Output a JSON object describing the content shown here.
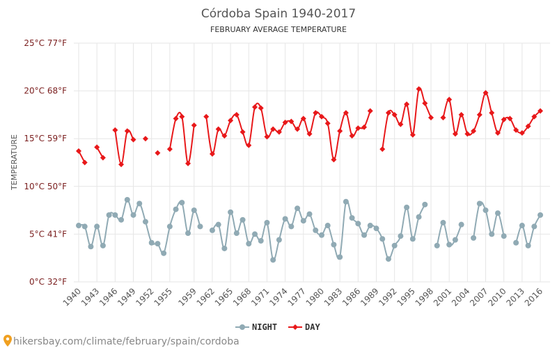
{
  "chart_data": {
    "type": "line",
    "title": "Córdoba Spain 1940-2017",
    "subtitle": "FEBRUARY AVERAGE TEMPERATURE",
    "ylabel": "TEMPERATURE",
    "ylim": [
      0,
      25
    ],
    "yticks": [
      {
        "value": 0,
        "label": "0°C 32°F"
      },
      {
        "value": 5,
        "label": "5°C 41°F"
      },
      {
        "value": 10,
        "label": "10°C 50°F"
      },
      {
        "value": 15,
        "label": "15°C 59°F"
      },
      {
        "value": 20,
        "label": "20°C 68°F"
      },
      {
        "value": 25,
        "label": "25°C 77°F"
      }
    ],
    "xticks": [
      1940,
      1943,
      1946,
      1949,
      1952,
      1955,
      1959,
      1962,
      1965,
      1968,
      1971,
      1974,
      1977,
      1980,
      1983,
      1986,
      1989,
      1992,
      1995,
      1998,
      2001,
      2004,
      2007,
      2010,
      2013,
      2016
    ],
    "x": [
      1940,
      1941,
      1942,
      1943,
      1944,
      1945,
      1946,
      1947,
      1948,
      1949,
      1950,
      1951,
      1952,
      1953,
      1954,
      1955,
      1956,
      1957,
      1958,
      1959,
      1960,
      1961,
      1962,
      1963,
      1964,
      1965,
      1966,
      1967,
      1968,
      1969,
      1970,
      1971,
      1972,
      1973,
      1974,
      1975,
      1976,
      1977,
      1978,
      1979,
      1980,
      1981,
      1982,
      1983,
      1984,
      1985,
      1986,
      1987,
      1988,
      1989,
      1990,
      1991,
      1992,
      1993,
      1994,
      1995,
      1996,
      1997,
      1998,
      1999,
      2000,
      2001,
      2002,
      2003,
      2004,
      2005,
      2006,
      2007,
      2008,
      2009,
      2010,
      2011,
      2012,
      2013,
      2014,
      2015,
      2016,
      2017
    ],
    "series": [
      {
        "name": "NIGHT",
        "color": "#90aab4",
        "values": [
          5.9,
          5.8,
          3.7,
          5.8,
          3.8,
          7.0,
          7.0,
          6.5,
          8.6,
          7.0,
          8.2,
          6.3,
          4.1,
          4.0,
          3.0,
          5.8,
          7.6,
          8.3,
          5.1,
          7.5,
          5.8,
          null,
          5.4,
          6.0,
          3.5,
          7.3,
          5.1,
          6.5,
          4.0,
          5.0,
          4.3,
          6.2,
          2.3,
          4.4,
          6.6,
          5.8,
          7.7,
          6.4,
          7.1,
          5.4,
          4.9,
          5.9,
          3.9,
          2.6,
          8.4,
          6.7,
          6.1,
          4.9,
          5.9,
          5.6,
          4.5,
          2.4,
          3.8,
          4.8,
          7.8,
          4.5,
          6.8,
          8.1,
          null,
          3.8,
          6.2,
          3.9,
          4.4,
          6.0,
          null,
          4.6,
          8.2,
          7.5,
          5.0,
          7.2,
          4.8,
          null,
          4.1,
          5.9,
          3.8,
          5.8,
          7.0,
          null
        ]
      },
      {
        "name": "DAY",
        "color": "#e8181a",
        "values": [
          13.7,
          12.5,
          null,
          14.1,
          13.0,
          null,
          15.9,
          12.3,
          15.8,
          14.9,
          null,
          15.0,
          null,
          13.5,
          null,
          13.9,
          17.1,
          17.3,
          12.4,
          16.4,
          null,
          17.3,
          13.4,
          16.0,
          15.3,
          16.9,
          17.5,
          15.7,
          14.3,
          18.3,
          18.2,
          15.2,
          16.0,
          15.7,
          16.7,
          16.8,
          16.0,
          17.1,
          15.5,
          17.7,
          17.3,
          16.6,
          12.8,
          15.8,
          17.7,
          15.3,
          16.1,
          16.2,
          17.9,
          null,
          13.9,
          17.7,
          17.5,
          16.5,
          18.6,
          15.4,
          20.2,
          18.7,
          17.2,
          null,
          17.2,
          19.1,
          15.5,
          17.5,
          15.5,
          15.8,
          17.5,
          19.8,
          17.7,
          15.6,
          17.0,
          17.1,
          15.9,
          15.6,
          16.3,
          17.3,
          17.9,
          null
        ]
      }
    ],
    "legend": [
      "NIGHT",
      "DAY"
    ],
    "legend_position": "bottom-center"
  },
  "source_text": "hikersbay.com/climate/february/spain/cordoba",
  "colors": {
    "night": "#90aab4",
    "day": "#e8181a",
    "grid": "#e6e6e6",
    "ytick": "#7a1e1e"
  }
}
